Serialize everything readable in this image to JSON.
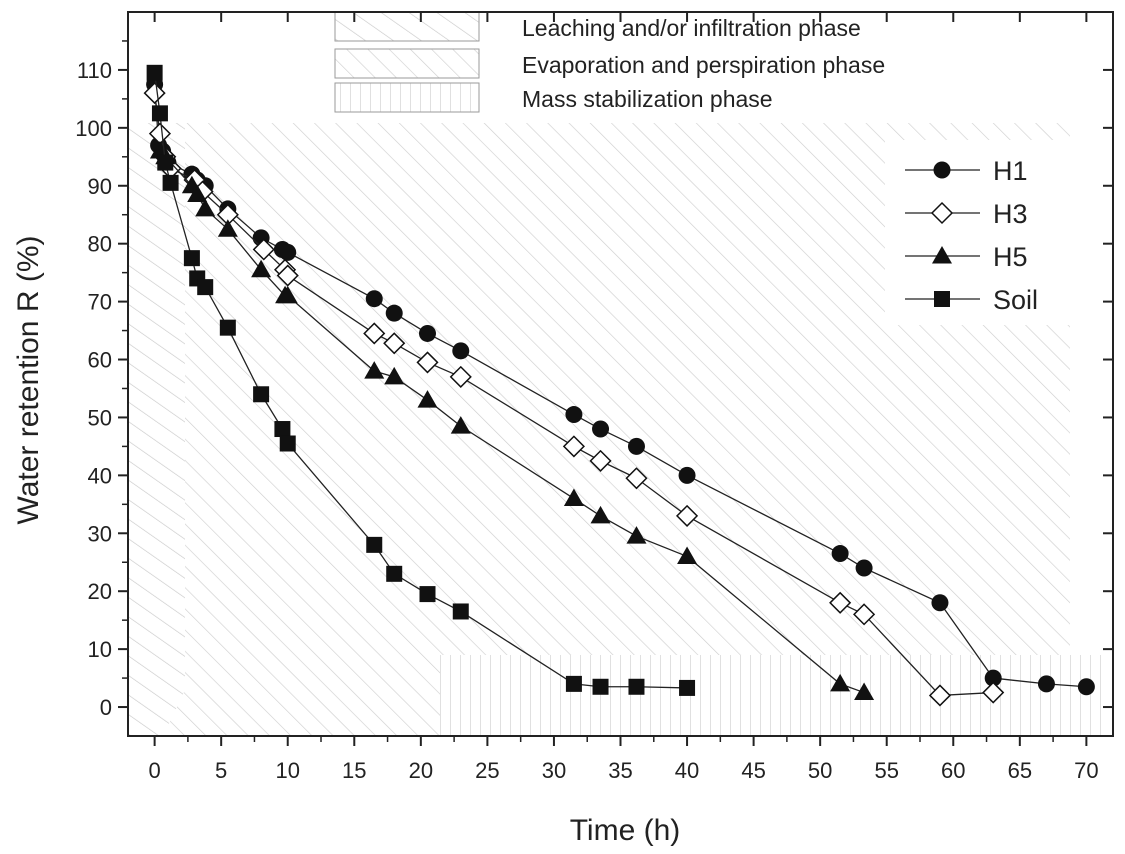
{
  "chart_data": {
    "type": "scatter",
    "xlabel": "Time (h)",
    "ylabel": "Water retention R (%)",
    "xlim": [
      -2,
      72
    ],
    "ylim": [
      -5,
      120
    ],
    "x_ticks": [
      0,
      5,
      10,
      15,
      20,
      25,
      30,
      35,
      40,
      45,
      50,
      55,
      60,
      65,
      70
    ],
    "y_ticks": [
      0,
      10,
      20,
      30,
      40,
      50,
      60,
      70,
      80,
      90,
      100,
      110
    ],
    "grid": false,
    "legend_position": "top-right",
    "phase_legend": [
      {
        "label": "Leaching and/or infiltration phase",
        "pattern": "hatch-steep"
      },
      {
        "label": "Evaporation and perspiration phase",
        "pattern": "hatch-diagonal"
      },
      {
        "label": "Mass stabilization phase",
        "pattern": "hatch-vertical"
      }
    ],
    "series": [
      {
        "name": "H1",
        "marker": "filled-circle",
        "x": [
          0,
          0.3,
          0.6,
          1,
          2.8,
          3.2,
          3.8,
          5.5,
          8,
          9.6,
          10,
          16.5,
          18,
          20.5,
          23,
          31.5,
          33.5,
          36.2,
          40,
          51.5,
          53.3,
          59,
          63,
          67,
          70
        ],
        "y": [
          107.5,
          97,
          96,
          94,
          92,
          91,
          90,
          86,
          81,
          79,
          78.5,
          70.5,
          68,
          64.5,
          61.5,
          50.5,
          48,
          45,
          40,
          26.5,
          24,
          18,
          5,
          4,
          3.5
        ]
      },
      {
        "name": "H3",
        "marker": "open-diamond",
        "x": [
          0,
          0.4,
          0.8,
          1.2,
          3,
          3.6,
          5.5,
          8.2,
          9.8,
          10,
          16.5,
          18,
          20.5,
          23,
          31.5,
          33.5,
          36.2,
          40,
          51.5,
          53.3,
          59,
          63
        ],
        "y": [
          106,
          99,
          95,
          93,
          91,
          89,
          85,
          79,
          75.5,
          74.5,
          64.5,
          62.8,
          59.5,
          57,
          45,
          42.5,
          39.5,
          33,
          18,
          16,
          2,
          2.5
        ]
      },
      {
        "name": "H5",
        "marker": "filled-triangle",
        "x": [
          0.4,
          0.8,
          2.8,
          3.2,
          3.8,
          5.5,
          8,
          9.8,
          10,
          16.5,
          18,
          20.5,
          23,
          31.5,
          33.5,
          36.2,
          40,
          51.5,
          53.3
        ],
        "y": [
          96,
          95,
          90,
          88.5,
          86,
          82.5,
          75.5,
          71,
          71,
          58,
          57,
          53,
          48.5,
          36,
          33,
          29.5,
          26,
          4,
          2.5
        ]
      },
      {
        "name": "Soil",
        "marker": "filled-square",
        "x": [
          0,
          0.4,
          0.8,
          1.2,
          2.8,
          3.2,
          3.8,
          5.5,
          8,
          9.6,
          10,
          16.5,
          18,
          20.5,
          23,
          31.5,
          33.5,
          36.2,
          40
        ],
        "y": [
          109.5,
          102.5,
          94,
          90.5,
          77.5,
          74,
          72.5,
          65.5,
          54,
          48,
          45.5,
          28,
          23,
          19.5,
          16.5,
          4,
          3.5,
          3.5,
          3.3
        ]
      }
    ]
  }
}
